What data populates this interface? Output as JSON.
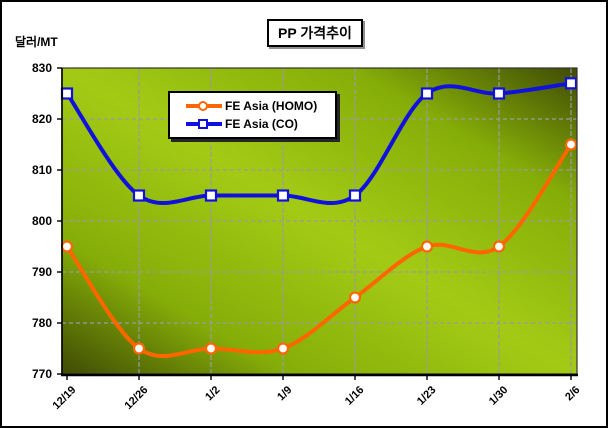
{
  "title": "PP 가격추이",
  "y_axis_label": "달러/MT",
  "chart_data": {
    "type": "line",
    "title": "PP 가격추이",
    "ylabel": "달러/MT",
    "xlabel": "",
    "categories": [
      "12/19",
      "12/26",
      "1/2",
      "1/9",
      "1/16",
      "1/23",
      "1/30",
      "2/6"
    ],
    "series": [
      {
        "name": "FE Asia (HOMO)",
        "color": "#FF6600",
        "marker": "circle",
        "values": [
          795,
          775,
          775,
          775,
          785,
          795,
          795,
          815
        ]
      },
      {
        "name": "FE Asia (CO)",
        "color": "#1111DD",
        "marker": "square",
        "values": [
          825,
          805,
          805,
          805,
          805,
          825,
          825,
          827
        ]
      }
    ],
    "ylim": [
      770,
      830
    ],
    "y_ticks": [
      830,
      820,
      810,
      800,
      790,
      780,
      770
    ],
    "grid": true,
    "line_style": "smooth",
    "legend_position": "inside-top-left"
  },
  "colors": {
    "plot_bg_dark": "#3F4B04",
    "plot_bg_mid": "#85AD08",
    "plot_bg_bright": "#A3CB15",
    "gridline": "#9B9B9B",
    "axis": "#000000",
    "marker_fill": "#FFFFFF"
  }
}
